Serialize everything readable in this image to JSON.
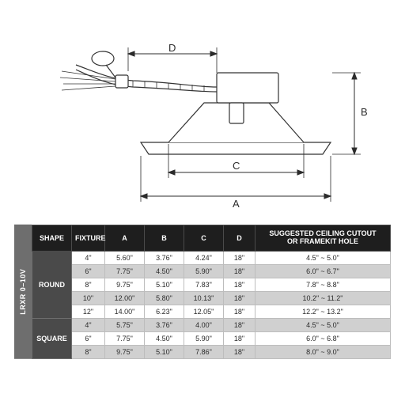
{
  "diagram": {
    "labels": {
      "A": "A",
      "B": "B",
      "C": "C",
      "D": "D"
    },
    "colors": {
      "line": "#2b2b2b",
      "fixture_outline": "#333333",
      "fixture_fill": "#ffffff",
      "cable_gray": "#888888"
    }
  },
  "table": {
    "side_label": "LRXR 0–10V",
    "headers": [
      "SHAPE",
      "FIXTURE",
      "A",
      "B",
      "C",
      "D",
      "SUGGESTED CEILING CUTOUT\nOR FRAMEKIT HOLE"
    ],
    "groups": [
      {
        "shape": "ROUND",
        "rows": [
          {
            "fixture": "4\"",
            "a": "5.60\"",
            "b": "3.76\"",
            "c": "4.24\"",
            "d": "18\"",
            "cut": "4.5\" ~ 5.0\""
          },
          {
            "fixture": "6\"",
            "a": "7.75\"",
            "b": "4.50\"",
            "c": "5.90\"",
            "d": "18\"",
            "cut": "6.0\" ~ 6.7\""
          },
          {
            "fixture": "8\"",
            "a": "9.75\"",
            "b": "5.10\"",
            "c": "7.83\"",
            "d": "18\"",
            "cut": "7.8\" ~ 8.8\""
          },
          {
            "fixture": "10\"",
            "a": "12.00\"",
            "b": "5.80\"",
            "c": "10.13\"",
            "d": "18\"",
            "cut": "10.2\" ~ 11.2\""
          },
          {
            "fixture": "12\"",
            "a": "14.00\"",
            "b": "6.23\"",
            "c": "12.05\"",
            "d": "18\"",
            "cut": "12.2\" ~ 13.2\""
          }
        ]
      },
      {
        "shape": "SQUARE",
        "rows": [
          {
            "fixture": "4\"",
            "a": "5.75\"",
            "b": "3.76\"",
            "c": "4.00\"",
            "d": "18\"",
            "cut": "4.5\" ~ 5.0\""
          },
          {
            "fixture": "6\"",
            "a": "7.75\"",
            "b": "4.50\"",
            "c": "5.90\"",
            "d": "18\"",
            "cut": "6.0\" ~ 6.8\""
          },
          {
            "fixture": "8\"",
            "a": "9.75\"",
            "b": "5.10\"",
            "c": "7.86\"",
            "d": "18\"",
            "cut": "8.0\" ~ 9.0\""
          }
        ]
      }
    ],
    "col_widths": [
      "50",
      "42",
      "50",
      "50",
      "50",
      "40",
      "180"
    ],
    "header_bg": "#1e1e1e",
    "header_fg": "#ffffff",
    "shape_bg": "#4a4a4a",
    "odd_row_bg": "#ffffff",
    "even_row_bg": "#d0d0d0",
    "border_color": "#bdbdbd",
    "font_size": 9
  }
}
